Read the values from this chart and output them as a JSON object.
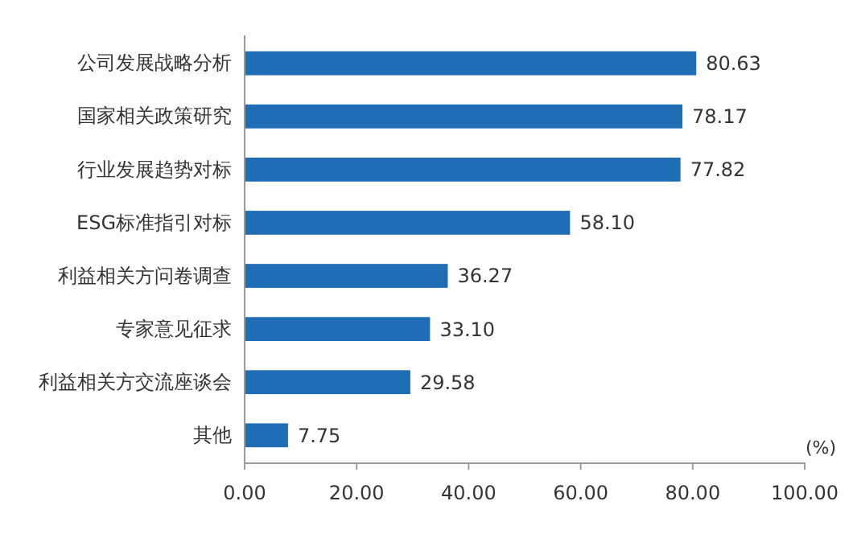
{
  "chart_data": {
    "type": "bar",
    "orientation": "horizontal",
    "xlabel": "(%)",
    "categories": [
      "公司发展战略分析",
      "国家相关政策研究",
      "行业发展趋势对标",
      "ESG标准指引对标",
      "利益相关方问卷调查",
      "专家意见征求",
      "利益相关方交流座谈会",
      "其他"
    ],
    "values": [
      80.63,
      78.17,
      77.82,
      58.1,
      36.27,
      33.1,
      29.58,
      7.75
    ],
    "value_labels": [
      "80.63",
      "78.17",
      "77.82",
      "58.10",
      "36.27",
      "33.10",
      "29.58",
      "7.75"
    ],
    "color": "#1f6db5",
    "xlim": [
      0,
      100
    ],
    "xticks": [
      {
        "value": 0,
        "label": "0.00"
      },
      {
        "value": 20,
        "label": "20.00"
      },
      {
        "value": 40,
        "label": "40.00"
      },
      {
        "value": 60,
        "label": "60.00"
      },
      {
        "value": 80,
        "label": "80.00"
      },
      {
        "value": 100,
        "label": "100.00"
      }
    ],
    "grid": false
  }
}
